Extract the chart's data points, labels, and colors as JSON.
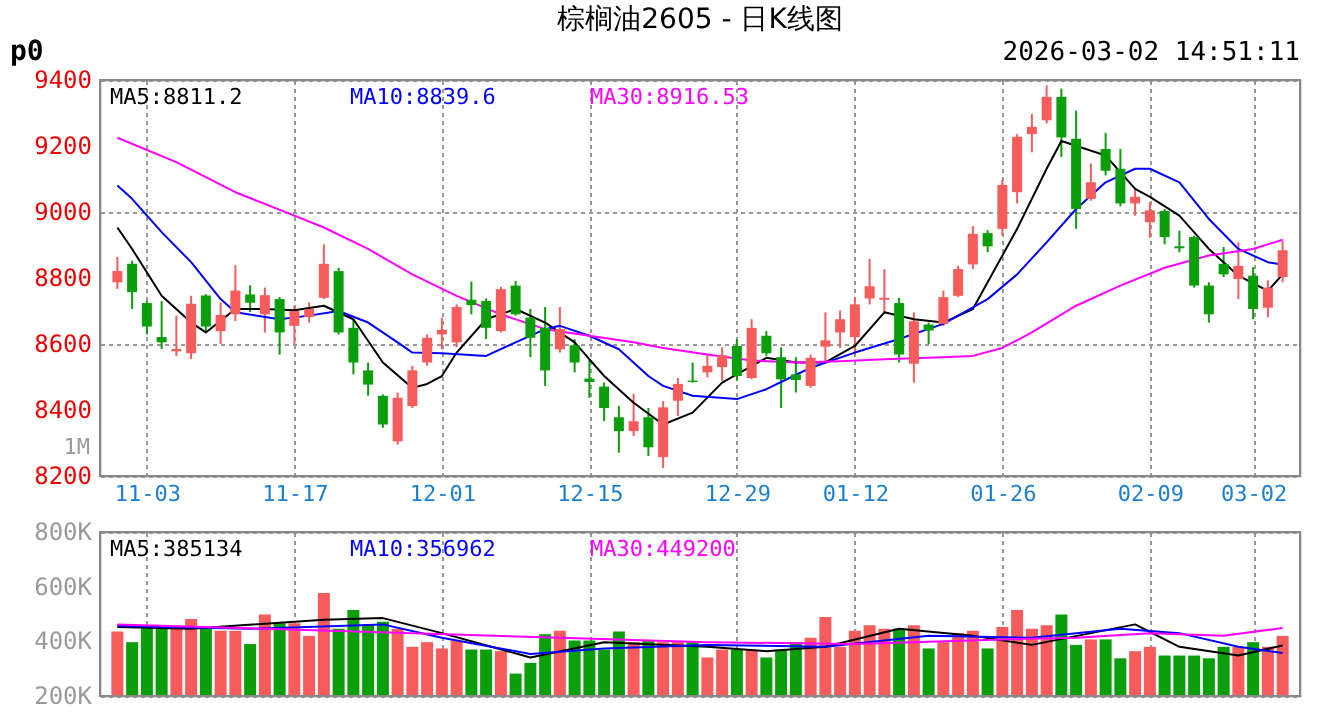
{
  "chart_data": [
    {
      "type": "candlestick",
      "title": "棕榈油2605 - 日K线图",
      "annotations": [
        "p0",
        "2026-03-02 14:51:11",
        "1M"
      ],
      "categories": [
        null,
        null,
        "11-03",
        null,
        null,
        null,
        null,
        null,
        null,
        null,
        null,
        null,
        "11-17",
        null,
        null,
        null,
        null,
        null,
        null,
        null,
        null,
        null,
        "12-01",
        null,
        null,
        null,
        null,
        null,
        null,
        null,
        null,
        null,
        "12-15",
        null,
        null,
        null,
        null,
        null,
        null,
        null,
        null,
        null,
        "12-29",
        null,
        null,
        null,
        null,
        null,
        null,
        null,
        "01-12",
        null,
        null,
        null,
        null,
        null,
        null,
        null,
        null,
        null,
        "01-26",
        null,
        null,
        null,
        null,
        null,
        null,
        null,
        null,
        null,
        "02-09",
        null,
        null,
        null,
        null,
        null,
        null,
        "03-02",
        null,
        null
      ],
      "ohlc": [
        [
          8787,
          8864,
          8767,
          8821
        ],
        [
          8843,
          8852,
          8706,
          8757
        ],
        [
          8724,
          8730,
          8629,
          8653
        ],
        [
          8621,
          8730,
          8585,
          8605
        ],
        [
          8578,
          8686,
          8564,
          8585
        ],
        [
          8572,
          8746,
          8554,
          8722
        ],
        [
          8747,
          8751,
          8636,
          8653
        ],
        [
          8639,
          8726,
          8600,
          8688
        ],
        [
          8690,
          8839,
          8670,
          8762
        ],
        [
          8750,
          8778,
          8697,
          8725
        ],
        [
          8690,
          8771,
          8635,
          8748
        ],
        [
          8736,
          8742,
          8568,
          8635
        ],
        [
          8655,
          8716,
          8599,
          8700
        ],
        [
          8682,
          8726,
          8665,
          8706
        ],
        [
          8740,
          8902,
          8736,
          8843
        ],
        [
          8821,
          8831,
          8629,
          8635
        ],
        [
          8649,
          8675,
          8508,
          8544
        ],
        [
          8520,
          8544,
          8443,
          8477
        ],
        [
          8443,
          8447,
          8346,
          8356
        ],
        [
          8305,
          8453,
          8295,
          8437
        ],
        [
          8412,
          8534,
          8406,
          8520
        ],
        [
          8544,
          8629,
          8534,
          8619
        ],
        [
          8629,
          8680,
          8584,
          8643
        ],
        [
          8605,
          8720,
          8590,
          8712
        ],
        [
          8734,
          8789,
          8690,
          8718
        ],
        [
          8730,
          8738,
          8615,
          8649
        ],
        [
          8639,
          8773,
          8635,
          8766
        ],
        [
          8777,
          8791,
          8686,
          8690
        ],
        [
          8680,
          8706,
          8560,
          8619
        ],
        [
          8649,
          8712,
          8473,
          8520
        ],
        [
          8584,
          8712,
          8574,
          8645
        ],
        [
          8596,
          8615,
          8514,
          8544
        ],
        [
          8495,
          8554,
          8437,
          8485
        ],
        [
          8471,
          8483,
          8366,
          8406
        ],
        [
          8378,
          8412,
          8271,
          8336
        ],
        [
          8336,
          8449,
          8321,
          8366
        ],
        [
          8378,
          8406,
          8261,
          8287
        ],
        [
          8257,
          8427,
          8224,
          8408
        ],
        [
          8428,
          8497,
          8382,
          8479
        ],
        [
          8489,
          8544,
          8483,
          8485
        ],
        [
          8514,
          8568,
          8499,
          8534
        ],
        [
          8530,
          8590,
          8489,
          8566
        ],
        [
          8594,
          8615,
          8489,
          8503
        ],
        [
          8497,
          8675,
          8493,
          8649
        ],
        [
          8625,
          8639,
          8564,
          8572
        ],
        [
          8560,
          8590,
          8406,
          8493
        ],
        [
          8508,
          8560,
          8453,
          8491
        ],
        [
          8473,
          8568,
          8467,
          8558
        ],
        [
          8592,
          8696,
          8548,
          8611
        ],
        [
          8635,
          8702,
          8588,
          8675
        ],
        [
          8621,
          8740,
          8568,
          8720
        ],
        [
          8738,
          8858,
          8720,
          8775
        ],
        [
          8734,
          8827,
          8690,
          8740
        ],
        [
          8724,
          8740,
          8544,
          8568
        ],
        [
          8540,
          8696,
          8483,
          8669
        ],
        [
          8659,
          8665,
          8600,
          8641
        ],
        [
          8661,
          8762,
          8655,
          8742
        ],
        [
          8746,
          8837,
          8742,
          8827
        ],
        [
          8841,
          8957,
          8827,
          8934
        ],
        [
          8936,
          8945,
          8878,
          8896
        ],
        [
          8949,
          9098,
          8928,
          9082
        ],
        [
          9060,
          9236,
          9026,
          9228
        ],
        [
          9236,
          9297,
          9181,
          9258
        ],
        [
          9278,
          9384,
          9268,
          9349
        ],
        [
          9349,
          9374,
          9167,
          9226
        ],
        [
          9222,
          9307,
          8949,
          9009
        ],
        [
          9040,
          9147,
          9034,
          9090
        ],
        [
          9191,
          9240,
          9111,
          9125
        ],
        [
          9131,
          9191,
          9017,
          9026
        ],
        [
          9026,
          9074,
          8989,
          9046
        ],
        [
          8969,
          9030,
          8922,
          9005
        ],
        [
          9003,
          9009,
          8902,
          8924
        ],
        [
          8896,
          8943,
          8878,
          8890
        ],
        [
          8924,
          8928,
          8771,
          8777
        ],
        [
          8777,
          8787,
          8665,
          8690
        ],
        [
          8843,
          8894,
          8803,
          8811
        ],
        [
          8797,
          8908,
          8736,
          8837
        ],
        [
          8807,
          8833,
          8675,
          8706
        ],
        [
          8710,
          8793,
          8681,
          8771
        ],
        [
          8803,
          8912,
          8787,
          8884
        ]
      ],
      "colors": [
        "#f65c5c",
        "#0a9e0a",
        "#0a9e0a",
        "#0a9e0a",
        "#f65c5c",
        "#f65c5c",
        "#0a9e0a",
        "#f65c5c",
        "#f65c5c",
        "#0a9e0a",
        "#f65c5c",
        "#0a9e0a",
        "#f65c5c",
        "#f65c5c",
        "#f65c5c",
        "#0a9e0a",
        "#0a9e0a",
        "#0a9e0a",
        "#0a9e0a",
        "#f65c5c",
        "#f65c5c",
        "#f65c5c",
        "#f65c5c",
        "#f65c5c",
        "#0a9e0a",
        "#0a9e0a",
        "#f65c5c",
        "#0a9e0a",
        "#0a9e0a",
        "#0a9e0a",
        "#f65c5c",
        "#0a9e0a",
        "#0a9e0a",
        "#0a9e0a",
        "#0a9e0a",
        "#f65c5c",
        "#0a9e0a",
        "#f65c5c",
        "#f65c5c",
        "#0a9e0a",
        "#f65c5c",
        "#f65c5c",
        "#0a9e0a",
        "#f65c5c",
        "#0a9e0a",
        "#0a9e0a",
        "#0a9e0a",
        "#f65c5c",
        "#f65c5c",
        "#f65c5c",
        "#f65c5c",
        "#f65c5c",
        "#f65c5c",
        "#0a9e0a",
        "#f65c5c",
        "#0a9e0a",
        "#f65c5c",
        "#f65c5c",
        "#f65c5c",
        "#0a9e0a",
        "#f65c5c",
        "#f65c5c",
        "#f65c5c",
        "#f65c5c",
        "#0a9e0a",
        "#0a9e0a",
        "#f65c5c",
        "#0a9e0a",
        "#0a9e0a",
        "#f65c5c",
        "#f65c5c",
        "#0a9e0a",
        "#0a9e0a",
        "#0a9e0a",
        "#0a9e0a",
        "#0a9e0a",
        "#f65c5c",
        "#0a9e0a",
        "#f65c5c",
        "#f65c5c"
      ],
      "series": [
        {
          "name": "MA5:8811.2",
          "type": "line",
          "color": "#000000",
          "values": [
            8953,
            8888,
            null,
            8746,
            null,
            8665,
            8635,
            null,
            8706,
            null,
            8706,
            null,
            8702,
            null,
            8716,
            null,
            8675,
            null,
            8544,
            null,
            8467,
            8479,
            8503,
            8574,
            null,
            8675,
            null,
            8706,
            null,
            8665,
            null,
            8605,
            null,
            8503,
            null,
            8422,
            null,
            8356,
            null,
            8392,
            null,
            8483,
            null,
            null,
            8558,
            null,
            8544,
            null,
            8544,
            null,
            8594,
            null,
            8696,
            null,
            8675,
            null,
            8665,
            null,
            8706,
            8787,
            null,
            8949,
            null,
            9131,
            9215,
            null,
            null,
            9171,
            null,
            9070,
            9046,
            null,
            8989,
            null,
            8888,
            null,
            8807,
            null,
            8761,
            8811
          ]
        },
        {
          "name": "MA10:8839.6",
          "type": "line",
          "color": "#0000ff",
          "values": [
            9080,
            9040,
            null,
            8939,
            null,
            8848,
            null,
            8736,
            8696,
            null,
            null,
            8675,
            null,
            8686,
            null,
            8700,
            null,
            8665,
            null,
            8605,
            8574,
            null,
            8572,
            null,
            null,
            8564,
            null,
            8605,
            null,
            8645,
            8655,
            null,
            8625,
            null,
            8584,
            null,
            8503,
            8473,
            null,
            8443,
            null,
            null,
            8433,
            null,
            8463,
            null,
            null,
            8528,
            null,
            null,
            8574,
            null,
            null,
            8615,
            null,
            null,
            8661,
            null,
            null,
            8736,
            null,
            8811,
            null,
            8908,
            null,
            9009,
            null,
            9090,
            null,
            9131,
            9131,
            null,
            9090,
            null,
            8979,
            null,
            8888,
            null,
            8848,
            8840
          ]
        },
        {
          "name": "MA30:8916.53",
          "type": "line",
          "color": "#ff00ff",
          "values": [
            9225,
            null,
            null,
            null,
            9151,
            null,
            null,
            null,
            9060,
            null,
            null,
            null,
            8989,
            null,
            8953,
            null,
            null,
            8888,
            null,
            null,
            8811,
            null,
            null,
            8746,
            null,
            null,
            8690,
            null,
            null,
            8645,
            null,
            null,
            8625,
            null,
            null,
            8605,
            null,
            8588,
            null,
            null,
            8568,
            null,
            null,
            8550,
            null,
            null,
            8544,
            null,
            null,
            8548,
            null,
            null,
            8554,
            null,
            null,
            8558,
            null,
            null,
            8564,
            null,
            8588,
            null,
            8635,
            null,
            null,
            8716,
            null,
            null,
            8777,
            null,
            null,
            8831,
            null,
            null,
            8868,
            null,
            null,
            8888,
            null,
            8916
          ]
        }
      ],
      "ylim": [
        8200,
        9400
      ],
      "yticks": [
        8200,
        8400,
        8600,
        8800,
        9000,
        9200,
        9400
      ],
      "grid": true,
      "legend": "top left"
    },
    {
      "type": "bar",
      "categories": [
        null,
        null,
        null,
        null,
        null,
        null,
        null,
        null,
        null,
        null,
        null,
        null,
        null,
        null,
        null,
        null,
        null,
        null,
        null,
        null,
        null,
        null,
        null,
        null,
        null,
        null,
        null,
        null,
        null,
        null,
        null,
        null,
        null,
        null,
        null,
        null,
        null,
        null,
        null,
        null,
        null,
        null,
        null,
        null,
        null,
        null,
        null,
        null,
        null,
        null,
        null,
        null,
        null,
        null,
        null,
        null,
        null,
        null,
        null,
        null,
        null,
        null,
        null,
        null,
        null,
        null,
        null,
        null,
        null,
        null,
        null,
        null,
        null,
        null,
        null,
        null,
        null,
        null,
        null,
        null
      ],
      "values": [
        436000,
        397000,
        456000,
        459000,
        446000,
        482000,
        446000,
        439000,
        439000,
        390000,
        498000,
        466000,
        466000,
        420000,
        577000,
        446000,
        515000,
        462000,
        472000,
        446000,
        380000,
        397000,
        374000,
        403000,
        370000,
        370000,
        364000,
        282000,
        321000,
        426000,
        439000,
        403000,
        403000,
        370000,
        436000,
        397000,
        403000,
        397000,
        397000,
        397000,
        341000,
        370000,
        370000,
        370000,
        341000,
        370000,
        397000,
        413000,
        489000,
        380000,
        439000,
        459000,
        446000,
        446000,
        459000,
        374000,
        397000,
        430000,
        439000,
        374000,
        452000,
        515000,
        446000,
        459000,
        498000,
        387000,
        407000,
        407000,
        338000,
        364000,
        380000,
        348000,
        348000,
        348000,
        338000,
        380000,
        380000,
        397000,
        380000,
        420000
      ],
      "colors": [
        "#f65c5c",
        "#0a9e0a",
        "#0a9e0a",
        "#0a9e0a",
        "#f65c5c",
        "#f65c5c",
        "#0a9e0a",
        "#f65c5c",
        "#f65c5c",
        "#0a9e0a",
        "#f65c5c",
        "#0a9e0a",
        "#f65c5c",
        "#f65c5c",
        "#f65c5c",
        "#0a9e0a",
        "#0a9e0a",
        "#0a9e0a",
        "#0a9e0a",
        "#f65c5c",
        "#f65c5c",
        "#f65c5c",
        "#f65c5c",
        "#f65c5c",
        "#0a9e0a",
        "#0a9e0a",
        "#f65c5c",
        "#0a9e0a",
        "#0a9e0a",
        "#0a9e0a",
        "#f65c5c",
        "#0a9e0a",
        "#0a9e0a",
        "#0a9e0a",
        "#0a9e0a",
        "#f65c5c",
        "#0a9e0a",
        "#f65c5c",
        "#f65c5c",
        "#0a9e0a",
        "#f65c5c",
        "#f65c5c",
        "#0a9e0a",
        "#f65c5c",
        "#0a9e0a",
        "#0a9e0a",
        "#0a9e0a",
        "#f65c5c",
        "#f65c5c",
        "#f65c5c",
        "#f65c5c",
        "#f65c5c",
        "#f65c5c",
        "#0a9e0a",
        "#f65c5c",
        "#0a9e0a",
        "#f65c5c",
        "#f65c5c",
        "#f65c5c",
        "#0a9e0a",
        "#f65c5c",
        "#f65c5c",
        "#f65c5c",
        "#f65c5c",
        "#0a9e0a",
        "#0a9e0a",
        "#f65c5c",
        "#0a9e0a",
        "#0a9e0a",
        "#f65c5c",
        "#f65c5c",
        "#0a9e0a",
        "#0a9e0a",
        "#0a9e0a",
        "#0a9e0a",
        "#0a9e0a",
        "#f65c5c",
        "#0a9e0a",
        "#f65c5c",
        "#f65c5c"
      ],
      "series": [
        {
          "name": "MA5:385134",
          "type": "line",
          "color": "#000000",
          "values": [
            452000,
            null,
            null,
            null,
            null,
            446000,
            null,
            null,
            null,
            null,
            null,
            null,
            null,
            null,
            479000,
            null,
            null,
            null,
            485000,
            null,
            null,
            null,
            430000,
            null,
            null,
            null,
            null,
            null,
            341000,
            null,
            null,
            null,
            null,
            397000,
            null,
            null,
            null,
            null,
            null,
            null,
            380000,
            null,
            null,
            null,
            364000,
            null,
            null,
            null,
            380000,
            null,
            null,
            null,
            null,
            446000,
            null,
            null,
            null,
            null,
            420000,
            null,
            null,
            null,
            387000,
            null,
            null,
            null,
            430000,
            null,
            null,
            462000,
            null,
            null,
            380000,
            null,
            null,
            null,
            348000,
            null,
            null,
            385000
          ]
        },
        {
          "name": "MA10:356962",
          "type": "line",
          "color": "#0000ff",
          "values": [
            456000,
            null,
            null,
            null,
            null,
            null,
            null,
            null,
            null,
            446000,
            null,
            null,
            null,
            null,
            null,
            null,
            null,
            null,
            462000,
            null,
            null,
            null,
            413000,
            null,
            null,
            null,
            null,
            null,
            354000,
            null,
            null,
            null,
            null,
            374000,
            null,
            null,
            null,
            null,
            null,
            null,
            387000,
            null,
            null,
            null,
            null,
            null,
            null,
            null,
            380000,
            null,
            null,
            null,
            null,
            null,
            null,
            420000,
            null,
            null,
            null,
            null,
            null,
            null,
            413000,
            null,
            null,
            null,
            null,
            null,
            446000,
            null,
            null,
            null,
            430000,
            null,
            null,
            null,
            380000,
            null,
            null,
            357000
          ]
        },
        {
          "name": "MA30:449200",
          "type": "line",
          "color": "#ff00ff",
          "values": [
            462000,
            null,
            null,
            null,
            null,
            null,
            null,
            null,
            null,
            null,
            446000,
            null,
            null,
            null,
            null,
            null,
            null,
            null,
            null,
            null,
            430000,
            null,
            null,
            null,
            null,
            null,
            null,
            null,
            null,
            null,
            413000,
            null,
            null,
            null,
            null,
            null,
            null,
            null,
            null,
            null,
            397000,
            null,
            null,
            null,
            null,
            null,
            null,
            null,
            null,
            null,
            390000,
            null,
            null,
            null,
            null,
            null,
            null,
            null,
            null,
            null,
            407000,
            null,
            null,
            null,
            null,
            413000,
            null,
            null,
            null,
            null,
            430000,
            null,
            null,
            null,
            null,
            420000,
            null,
            null,
            null,
            449000
          ]
        }
      ],
      "ylim": [
        200000,
        800000
      ],
      "yticks": [
        {
          "value": 200000,
          "label": "200K"
        },
        {
          "value": 400000,
          "label": "400K"
        },
        {
          "value": 600000,
          "label": "600K"
        },
        {
          "value": 800000,
          "label": "800K"
        }
      ],
      "tick_labels": "y",
      "grid": true,
      "legend": "top left"
    }
  ]
}
